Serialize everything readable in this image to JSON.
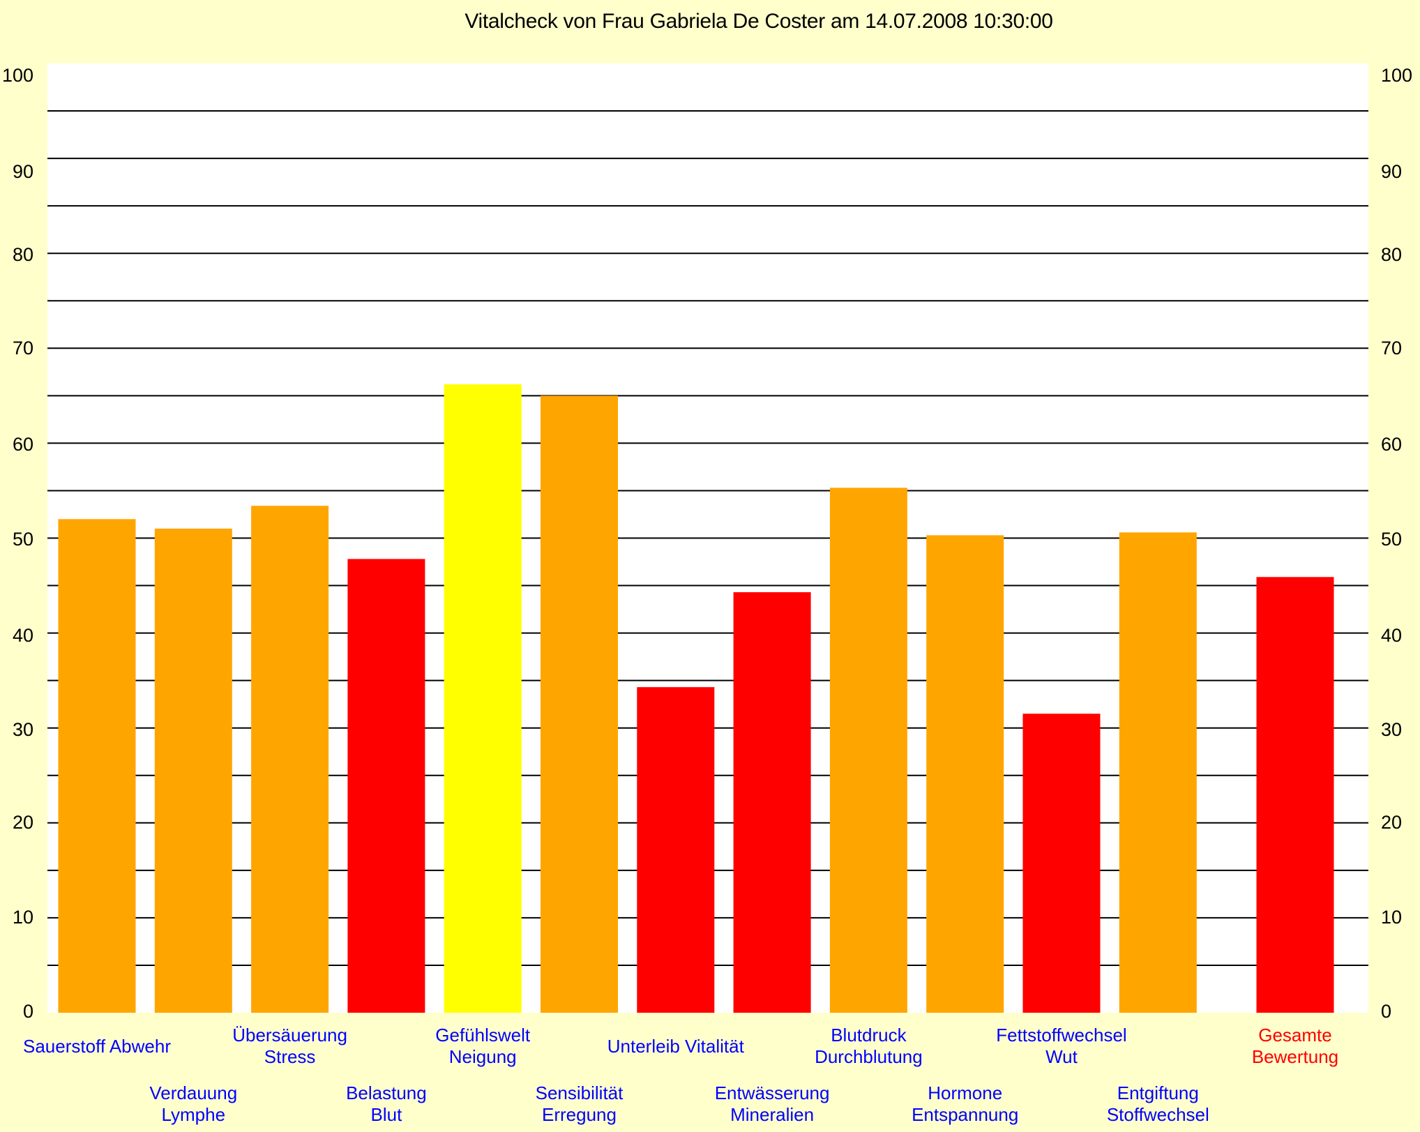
{
  "chart_data": {
    "type": "bar",
    "title": "Vitalcheck von Frau Gabriela De Coster am 14.07.2008 10:30:00",
    "ylim": [
      0,
      100
    ],
    "yticks": [
      "0",
      "10",
      "20",
      "30",
      "40",
      "50",
      "60",
      "70",
      "80",
      "90",
      "100"
    ],
    "y_axis_sides": "left-and-right",
    "grid": true,
    "grid_step": 5,
    "categories": [
      [
        "Sauerstoff Abwehr"
      ],
      [
        "Verdauung",
        "Lymphe"
      ],
      [
        "Übersäuerung",
        "Stress"
      ],
      [
        "Belastung",
        "Blut"
      ],
      [
        "Gefühlswelt",
        "Neigung"
      ],
      [
        "Sensibilität",
        "Erregung"
      ],
      [
        "Unterleib Vitalität"
      ],
      [
        "Entwässerung",
        "Mineralien"
      ],
      [
        "Blutdruck",
        "Durchblutung"
      ],
      [
        "Hormone",
        "Entspannung"
      ],
      [
        "Fettstoffwechsel",
        "Wut"
      ],
      [
        "Entgiftung",
        "Stoffwechsel"
      ],
      [
        "Gesamte",
        "Bewertung"
      ]
    ],
    "values": [
      52,
      51,
      53.4,
      47.8,
      66.2,
      65,
      34.3,
      44.3,
      55.3,
      50.3,
      31.5,
      50.6,
      45.9
    ],
    "bar_colors": [
      "#ffa500",
      "#ffa500",
      "#ffa500",
      "#ff0000",
      "#ffff00",
      "#ffa500",
      "#ff0000",
      "#ff0000",
      "#ffa500",
      "#ffa500",
      "#ff0000",
      "#ffa500",
      "#ff0000"
    ],
    "label_colors": [
      "#0000ff",
      "#0000ff",
      "#0000ff",
      "#0000ff",
      "#0000ff",
      "#0000ff",
      "#0000ff",
      "#0000ff",
      "#0000ff",
      "#0000ff",
      "#0000ff",
      "#0000ff",
      "#ff0000"
    ],
    "colors": {
      "background": "#ffffcc",
      "plot_area": "#ffffff",
      "gridline": "#000000"
    }
  }
}
